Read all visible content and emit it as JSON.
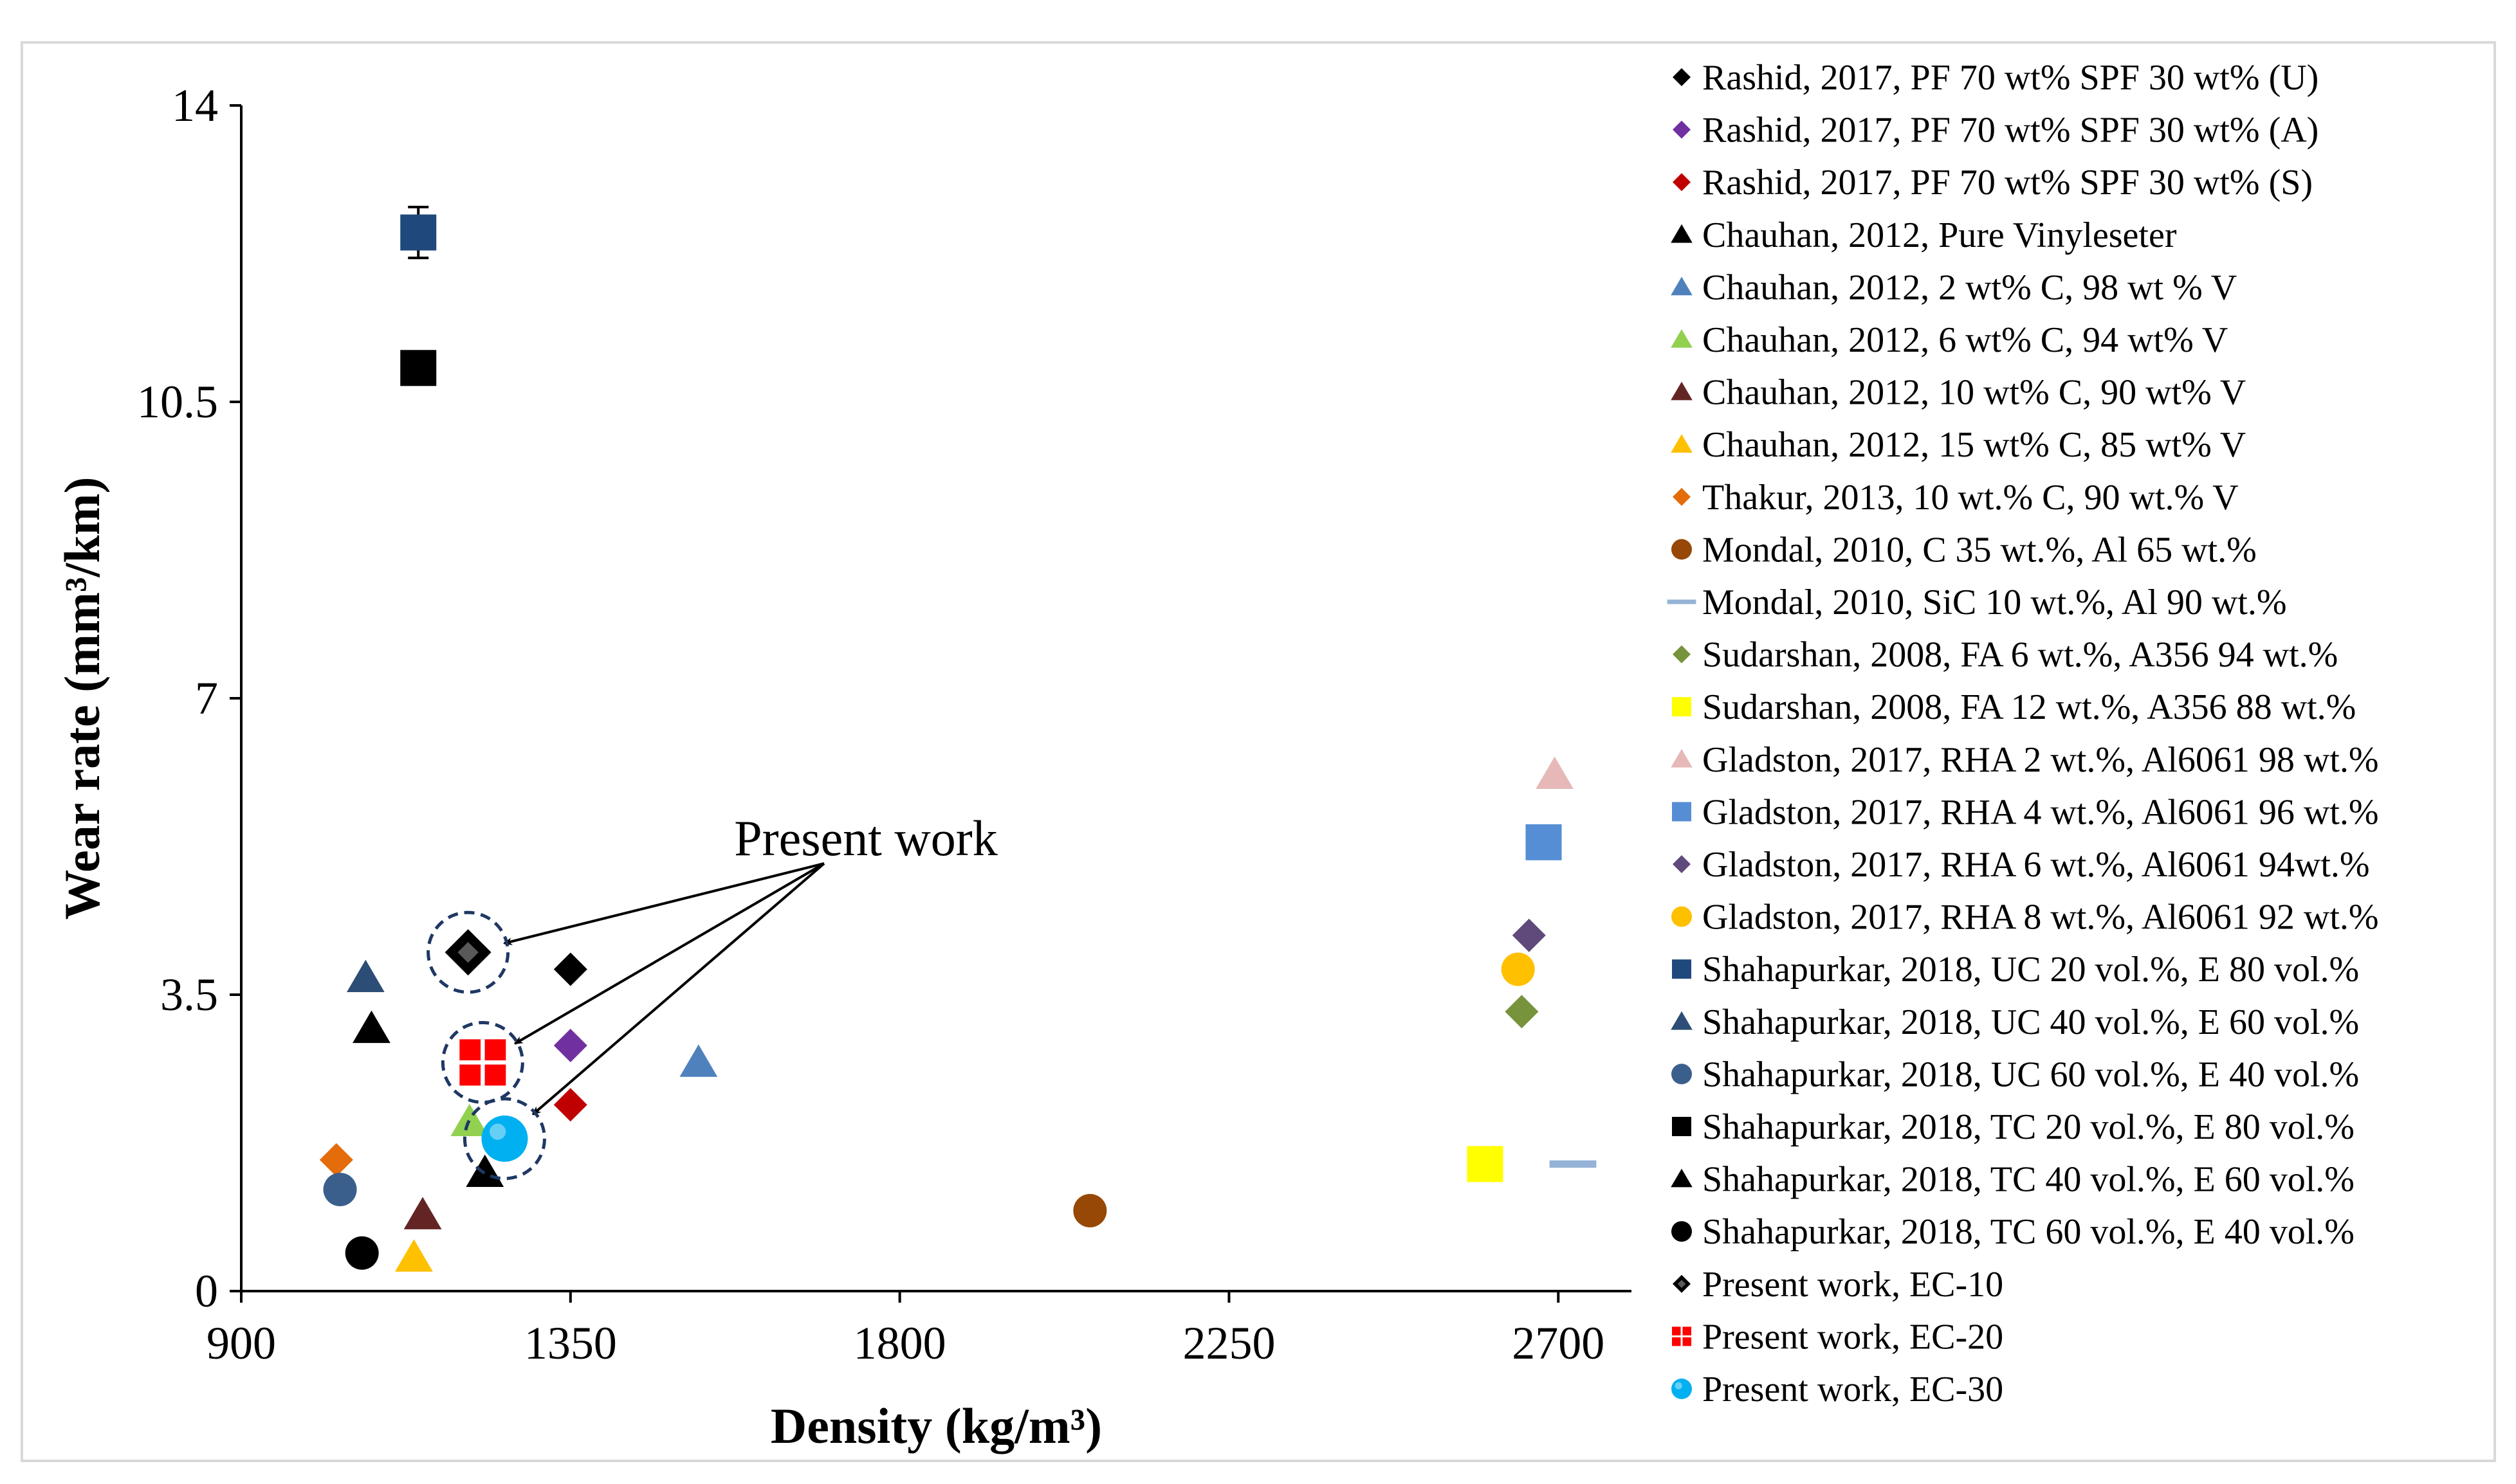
{
  "chart_data": {
    "type": "scatter",
    "title": "",
    "xlabel": "Density (kg/m³)",
    "ylabel": "Wear rate (mm³/km)",
    "xlim": [
      900,
      2800
    ],
    "ylim": [
      0,
      14
    ],
    "x_ticks": [
      900,
      1350,
      1800,
      2250,
      2700
    ],
    "y_ticks": [
      0,
      3.5,
      7,
      10.5,
      14
    ],
    "x_tick_labels": [
      "900",
      "1350",
      "1800",
      "2250",
      "2700"
    ],
    "y_tick_labels": [
      "0",
      "3.5",
      "7",
      "10.5",
      "14"
    ],
    "grid": false,
    "legend_position": "right",
    "annotation": "Present work",
    "series": [
      {
        "name": "Rashid, 2017, PF 70 wt% SPF 30 wt%  (U)",
        "marker": "diamond",
        "color": "#000000",
        "x": [
          1350
        ],
        "y": [
          3.8
        ]
      },
      {
        "name": "Rashid, 2017, PF 70 wt% SPF 30 wt%  (A)",
        "marker": "diamond",
        "color": "#7030a0",
        "x": [
          1350
        ],
        "y": [
          2.9
        ]
      },
      {
        "name": "Rashid, 2017, PF 70 wt% SPF 30 wt%  (S)",
        "marker": "diamond",
        "color": "#c00000",
        "x": [
          1350
        ],
        "y": [
          2.2
        ]
      },
      {
        "name": "Chauhan, 2012, Pure Vinyleseter",
        "marker": "triangle",
        "color": "#000000",
        "x": [
          1233
        ],
        "y": [
          1.4
        ]
      },
      {
        "name": "Chauhan, 2012, 2 wt% C,  98 wt % V",
        "marker": "triangle",
        "color": "#4f81bd",
        "x": [
          1525
        ],
        "y": [
          2.7
        ]
      },
      {
        "name": "Chauhan, 2012, 6 wt% C,  94 wt% V",
        "marker": "triangle",
        "color": "#92d050",
        "x": [
          1212
        ],
        "y": [
          2.0
        ]
      },
      {
        "name": "Chauhan, 2012, 10 wt% C, 90 wt% V",
        "marker": "triangle",
        "color": "#632523",
        "x": [
          1148
        ],
        "y": [
          0.9
        ]
      },
      {
        "name": "Chauhan, 2012, 15 wt% C, 85 wt% V",
        "marker": "triangle",
        "color": "#ffc000",
        "x": [
          1136
        ],
        "y": [
          0.4
        ]
      },
      {
        "name": "Thakur, 2013, 10 wt.% C, 90 wt.% V",
        "marker": "diamond",
        "color": "#e46c0a",
        "x": [
          1030
        ],
        "y": [
          1.55
        ]
      },
      {
        "name": "Mondal, 2010, C 35 wt.%,  Al 65 wt.%",
        "marker": "circle",
        "color": "#974706",
        "x": [
          2060
        ],
        "y": [
          0.95
        ]
      },
      {
        "name": "Mondal, 2010, SiC 10 wt.%,  Al 90 wt.%",
        "marker": "dash",
        "color": "#95b3d7",
        "x": [
          2720
        ],
        "y": [
          1.5
        ]
      },
      {
        "name": "Sudarshan, 2008, FA 6 wt.%, A356 94 wt.%",
        "marker": "diamond",
        "color": "#77933c",
        "x": [
          2650
        ],
        "y": [
          3.3
        ]
      },
      {
        "name": "Sudarshan, 2008, FA 12 wt.%, A356 88 wt.%",
        "marker": "square",
        "color": "#ffff00",
        "x": [
          2600
        ],
        "y": [
          1.5
        ]
      },
      {
        "name": "Gladston, 2017, RHA 2 wt.%, Al6061  98 wt.%",
        "marker": "triangle",
        "color": "#e6b9b8",
        "x": [
          2695
        ],
        "y": [
          6.1
        ]
      },
      {
        "name": "Gladston, 2017, RHA 4 wt.%, Al6061  96 wt.%",
        "marker": "square",
        "color": "#558ed5",
        "x": [
          2680
        ],
        "y": [
          5.3
        ]
      },
      {
        "name": "Gladston, 2017, RHA 6 wt.%, Al6061  94wt.%",
        "marker": "diamond",
        "color": "#604a7b",
        "x": [
          2660
        ],
        "y": [
          4.2
        ]
      },
      {
        "name": "Gladston, 2017, RHA 8 wt.%, Al6061  92 wt.%",
        "marker": "circle",
        "color": "#ffc000",
        "x": [
          2645
        ],
        "y": [
          3.8
        ]
      },
      {
        "name": "Shahapurkar, 2018, UC 20 vol.%,  E 80 vol.%",
        "marker": "square",
        "color": "#1f497d",
        "x": [
          1142
        ],
        "y": [
          12.5
        ],
        "error": 0.3
      },
      {
        "name": "Shahapurkar, 2018, UC 40 vol.%,  E 60 vol.%",
        "marker": "triangle",
        "color": "#2c4d75",
        "x": [
          1070
        ],
        "y": [
          3.7
        ]
      },
      {
        "name": "Shahapurkar, 2018, UC 60 vol.%,  E 40 vol.%",
        "marker": "circle",
        "color": "#3a5f8c",
        "x": [
          1035
        ],
        "y": [
          1.2
        ]
      },
      {
        "name": "Shahapurkar, 2018, TC 20 vol.%,  E 80 vol.%",
        "marker": "square",
        "color": "#000000",
        "x": [
          1142
        ],
        "y": [
          10.9
        ]
      },
      {
        "name": "Shahapurkar, 2018, TC 40 vol.%,  E 60 vol.%",
        "marker": "triangle",
        "color": "#000000",
        "x": [
          1078
        ],
        "y": [
          3.1
        ]
      },
      {
        "name": "Shahapurkar, 2018, TC 60 vol.%,  E 40 vol.%",
        "marker": "circle",
        "color": "#000000",
        "x": [
          1065
        ],
        "y": [
          0.45
        ]
      },
      {
        "name": "Present work, EC-10",
        "marker": "present-diamond",
        "color": "#000000",
        "x": [
          1210
        ],
        "y": [
          4.0
        ],
        "highlight": true
      },
      {
        "name": "Present work, EC-20",
        "marker": "present-square",
        "color": "#ff0000",
        "x": [
          1230
        ],
        "y": [
          2.7
        ],
        "highlight": true
      },
      {
        "name": "Present work, EC-30",
        "marker": "present-circle",
        "color": "#00b0f0",
        "x": [
          1260
        ],
        "y": [
          1.8
        ],
        "highlight": true
      }
    ]
  }
}
